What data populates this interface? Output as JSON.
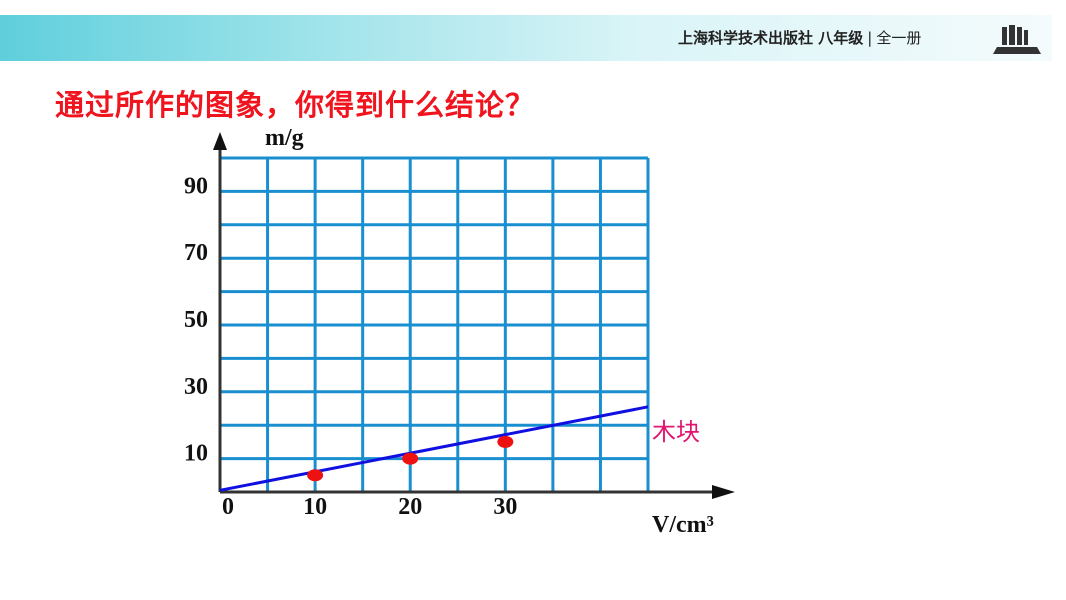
{
  "header": {
    "publisher": "上海科学技术出版社",
    "grade": "八年级",
    "separator": "|",
    "volume": "全一册",
    "logo_icon": "bookshelf-icon",
    "banner_color": "#5fcfdc"
  },
  "slide": {
    "title": "通过所作的图象，你得到什么结论？"
  },
  "chart_data": {
    "type": "scatter",
    "xlabel": "V/cm³",
    "ylabel": "m/g",
    "xlim": [
      0,
      45
    ],
    "ylim": [
      0,
      100
    ],
    "x_grid_step": 5,
    "y_grid_step": 10,
    "grid": true,
    "grid_color": "#1a8fd0",
    "x_ticks": [
      "0",
      "10",
      "20",
      "30"
    ],
    "y_ticks": [
      "10",
      "30",
      "50",
      "70",
      "90"
    ],
    "series": [
      {
        "name": "木块",
        "label_color": "#e0156e",
        "point_color": "#ee1111",
        "line_color": "#1010e0",
        "points": [
          [
            10,
            5
          ],
          [
            20,
            10
          ],
          [
            30,
            15
          ]
        ],
        "fit_line": [
          [
            0,
            0.5
          ],
          [
            45,
            25.5
          ]
        ]
      }
    ]
  }
}
